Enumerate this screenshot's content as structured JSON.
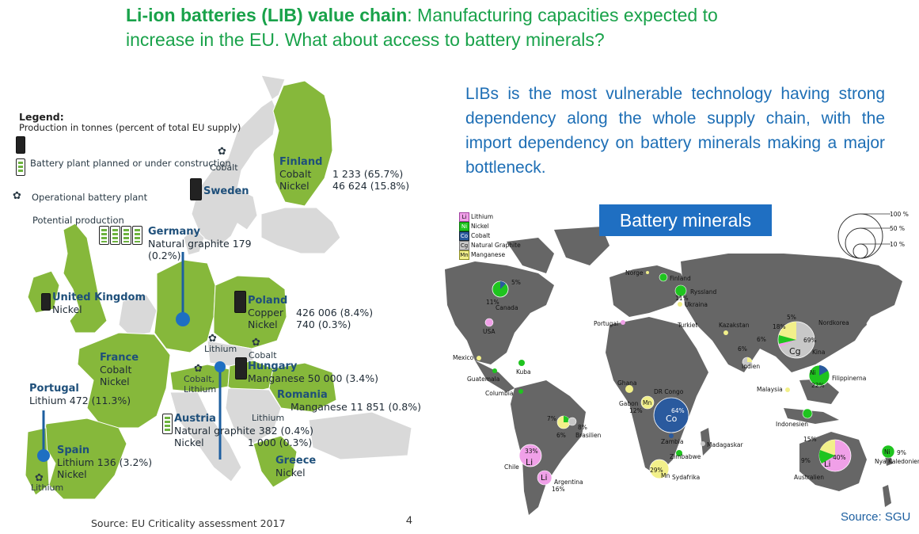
{
  "title": {
    "bold": "Li-ion batteries (LIB) value chain",
    "rest": ": Manufacturing capacities  expected to increase in the EU. What about access to battery minerals?"
  },
  "eu_map": {
    "legend_title": "Legend:",
    "legend_production": "Production in tonnes (percent of total EU supply)",
    "legend_planned": "Battery plant planned or under construction",
    "legend_operational": "Operational battery plant",
    "potential_production": "Potential production",
    "countries": [
      {
        "id": "finland",
        "name": "Finland",
        "lines": [
          "Cobalt",
          "Nickel"
        ],
        "values": [
          "1 233  (65.7%)",
          "46 624 (15.8%)"
        ]
      },
      {
        "id": "sweden",
        "name": "Sweden",
        "lines": [],
        "values": []
      },
      {
        "id": "germany",
        "name": "Germany",
        "lines": [
          "Natural graphite 179",
          "(0.2%)"
        ],
        "values": []
      },
      {
        "id": "uk",
        "name": "United Kingdom",
        "lines": [
          "Nickel"
        ],
        "values": []
      },
      {
        "id": "poland",
        "name": "Poland",
        "lines": [
          "Copper",
          "Nickel"
        ],
        "values": [
          "426 006 (8.4%)",
          "740  (0.3%)"
        ]
      },
      {
        "id": "france",
        "name": "France",
        "lines": [
          "Cobalt",
          "Nickel"
        ],
        "values": []
      },
      {
        "id": "hungary",
        "name": "Hungary",
        "lines": [
          "Manganese 50 000 (3.4%)"
        ],
        "values": []
      },
      {
        "id": "portugal",
        "name": "Portugal",
        "lines": [
          "Lithium 472 (11.3%)"
        ],
        "values": []
      },
      {
        "id": "romania",
        "name": "Romania",
        "lines": [
          "Manganese  11 851 (0.8%)"
        ],
        "values": []
      },
      {
        "id": "austria",
        "name": "Austria",
        "lines": [
          "Natural graphite 382 (0.4%)",
          "Nickel"
        ],
        "values": [
          "",
          "1 000 (0.3%)"
        ]
      },
      {
        "id": "spain",
        "name": "Spain",
        "lines": [
          "Lithium 136 (3.2%)",
          "Nickel"
        ],
        "values": []
      },
      {
        "id": "greece",
        "name": "Greece",
        "lines": [
          "Nickel"
        ],
        "values": []
      }
    ],
    "mineral_labels": {
      "cobalt_sweden": "Cobalt",
      "lithium_czech": "Lithium",
      "cobalt_hungary": "Cobalt",
      "cobalt_lithium": "Cobalt,\nLithium",
      "lithium_serbia": "Lithium",
      "lithium_spain": "Lithium"
    },
    "source": "Source: EU Criticality assessment 2017"
  },
  "page_number": "4",
  "vulnerable_text": "LIBs is the most vulnerable technology having strong dependency along the whole supply chain, with the import dependency on battery minerals making a major bottleneck.",
  "world_map": {
    "title": "Battery minerals",
    "legend": [
      {
        "code": "Li",
        "name": "Lithium",
        "color": "#f0a0e8"
      },
      {
        "code": "Ni",
        "name": "Nickel",
        "color": "#1fc41f"
      },
      {
        "code": "Co",
        "name": "Cobalt",
        "color": "#2a5a9e"
      },
      {
        "code": "Cg",
        "name": "Natural Graphite",
        "color": "#c8c8c8"
      },
      {
        "code": "Mn",
        "name": "Manganese",
        "color": "#f2f08a"
      }
    ],
    "scale": [
      "100 %",
      "50 %",
      "10 %"
    ],
    "places": {
      "norge": "Norge",
      "finland": "Finland",
      "ryssland": "Ryssland",
      "ukraina": "Ukraina",
      "portugal": "Portugal",
      "turkiet": "Turkiet",
      "kazakstan": "Kazakstan",
      "nordkorea": "Nordkorea",
      "canada": "Canada",
      "usa": "USA",
      "mexico": "Mexico",
      "kuba": "Kuba",
      "guatemala": "Guatemala",
      "columbia": "Columbia",
      "kina": "Kina",
      "indien": "Indien",
      "filippinerna": "Filippinerna",
      "malaysia": "Malaysia",
      "ghana": "Ghana",
      "gabon": "Gabon",
      "drcongo": "DR Congo",
      "zambia": "Zambia",
      "brasilien": "Brasilien",
      "indonesien": "Indonesien",
      "madagaskar": "Madagaskar",
      "zimbabwe": "Zimbabwe",
      "sydafrika": "Sydafrika",
      "chile": "Chile",
      "argentina": "Argentina",
      "australien": "Australien",
      "nyakaledonien": "Nya Kaledonien"
    },
    "pcts": {
      "canada_5": "5%",
      "canada_11": "11%",
      "ryssland_11": "11%",
      "kina_18": "18%",
      "kina_5": "5%",
      "kina_6": "6%",
      "kina_69": "69%",
      "indien_6": "6%",
      "filippinerna_22": "22%",
      "gabon_12": "12%",
      "drcongo_64": "64%",
      "brasilien_7": "7%",
      "brasilien_8": "8%",
      "brasilien_6": "6%",
      "chile_33": "33%",
      "argentina_16": "16%",
      "sydafrika_29": "29%",
      "australien_15": "15%",
      "australien_9": "9%",
      "australien_40": "40%",
      "nyakaledonien_9": "9%"
    },
    "source": "Source: SGU"
  }
}
